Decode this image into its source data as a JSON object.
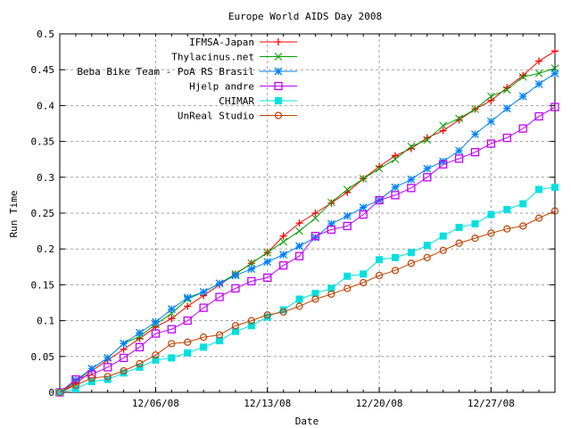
{
  "chart_data": {
    "type": "line",
    "title": "Europe World AIDS Day 2008",
    "xlabel": "Date",
    "ylabel": "Run Time",
    "ylim": [
      0,
      0.5
    ],
    "yticks": [
      "0",
      "0.05",
      "0.1",
      "0.15",
      "0.2",
      "0.25",
      "0.3",
      "0.35",
      "0.4",
      "0.45",
      "0.5"
    ],
    "x": [
      "11/30/08",
      "12/01/08",
      "12/02/08",
      "12/03/08",
      "12/04/08",
      "12/05/08",
      "12/06/08",
      "12/07/08",
      "12/08/08",
      "12/09/08",
      "12/10/08",
      "12/11/08",
      "12/12/08",
      "12/13/08",
      "12/14/08",
      "12/15/08",
      "12/16/08",
      "12/17/08",
      "12/18/08",
      "12/19/08",
      "12/20/08",
      "12/21/08",
      "12/22/08",
      "12/23/08",
      "12/24/08",
      "12/25/08",
      "12/26/08",
      "12/27/08",
      "12/28/08",
      "12/29/08",
      "12/30/08",
      "12/31/08"
    ],
    "xtick_labels": [
      {
        "index": 6,
        "label": "12/06/08"
      },
      {
        "index": 13,
        "label": "12/13/08"
      },
      {
        "index": 20,
        "label": "12/20/08"
      },
      {
        "index": 27,
        "label": "12/27/08"
      }
    ],
    "grid": true,
    "legend_position": "top-right",
    "series": [
      {
        "name": "IFMSA-Japan",
        "color": "#ff0000",
        "marker": "plus",
        "values": [
          0,
          0.012,
          0.03,
          0.045,
          0.06,
          0.075,
          0.091,
          0.103,
          0.12,
          0.135,
          0.15,
          0.165,
          0.18,
          0.195,
          0.218,
          0.236,
          0.25,
          0.264,
          0.279,
          0.298,
          0.315,
          0.33,
          0.34,
          0.355,
          0.365,
          0.38,
          0.395,
          0.407,
          0.425,
          0.442,
          0.462,
          0.476
        ]
      },
      {
        "name": "Thylacinus.net",
        "color": "#00a000",
        "marker": "cross",
        "values": [
          0,
          0.015,
          0.033,
          0.048,
          0.068,
          0.078,
          0.095,
          0.11,
          0.13,
          0.14,
          0.152,
          0.165,
          0.18,
          0.195,
          0.21,
          0.225,
          0.243,
          0.265,
          0.283,
          0.298,
          0.312,
          0.325,
          0.343,
          0.352,
          0.372,
          0.382,
          0.395,
          0.413,
          0.422,
          0.44,
          0.445,
          0.452
        ]
      },
      {
        "name": "Beba Bike Team - PoA RS Brasil",
        "color": "#0080ff",
        "marker": "star",
        "values": [
          0,
          0.017,
          0.033,
          0.048,
          0.068,
          0.083,
          0.098,
          0.116,
          0.132,
          0.14,
          0.152,
          0.163,
          0.172,
          0.182,
          0.192,
          0.204,
          0.216,
          0.235,
          0.246,
          0.258,
          0.268,
          0.286,
          0.297,
          0.312,
          0.322,
          0.337,
          0.36,
          0.378,
          0.396,
          0.413,
          0.43,
          0.445
        ]
      },
      {
        "name": "Hjelp andre",
        "color": "#c000ff",
        "marker": "square-open",
        "values": [
          0,
          0.018,
          0.025,
          0.035,
          0.048,
          0.063,
          0.082,
          0.088,
          0.1,
          0.118,
          0.133,
          0.145,
          0.155,
          0.16,
          0.177,
          0.19,
          0.218,
          0.227,
          0.232,
          0.248,
          0.268,
          0.275,
          0.285,
          0.3,
          0.318,
          0.326,
          0.335,
          0.347,
          0.355,
          0.368,
          0.385,
          0.398
        ]
      },
      {
        "name": "CHIMAR",
        "color": "#00e0e0",
        "marker": "square-filled",
        "values": [
          0,
          0.005,
          0.015,
          0.018,
          0.027,
          0.035,
          0.045,
          0.048,
          0.055,
          0.063,
          0.072,
          0.085,
          0.093,
          0.105,
          0.115,
          0.13,
          0.138,
          0.145,
          0.162,
          0.165,
          0.185,
          0.188,
          0.195,
          0.205,
          0.218,
          0.23,
          0.235,
          0.248,
          0.255,
          0.263,
          0.283,
          0.286
        ]
      },
      {
        "name": "UnReal Studio",
        "color": "#c04000",
        "marker": "circle-open",
        "values": [
          0,
          0.01,
          0.02,
          0.022,
          0.03,
          0.04,
          0.052,
          0.068,
          0.07,
          0.077,
          0.08,
          0.093,
          0.1,
          0.108,
          0.112,
          0.12,
          0.13,
          0.137,
          0.145,
          0.153,
          0.163,
          0.17,
          0.18,
          0.188,
          0.198,
          0.208,
          0.215,
          0.222,
          0.228,
          0.232,
          0.243,
          0.253
        ]
      }
    ]
  }
}
